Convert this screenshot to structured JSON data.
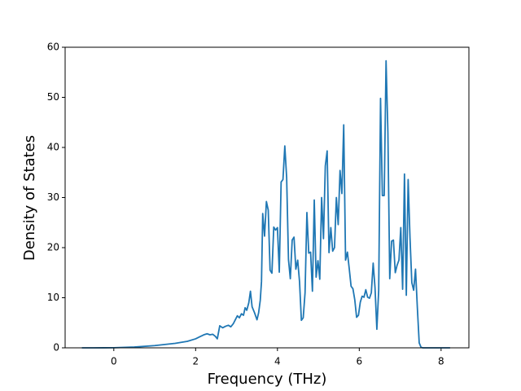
{
  "chart_data": {
    "type": "line",
    "xlabel": "Frequency (THz)",
    "ylabel": "Density of States",
    "xlim": [
      -1.19,
      8.68
    ],
    "ylim": [
      0,
      60
    ],
    "xticks": [
      0,
      2,
      4,
      6,
      8
    ],
    "yticks": [
      0,
      10,
      20,
      30,
      40,
      50,
      60
    ],
    "series": [
      {
        "color": "#1f77b4",
        "x": [
          -0.78,
          -0.5,
          0,
          0.5,
          1.0,
          1.5,
          1.8,
          2.0,
          2.1,
          2.2,
          2.28,
          2.35,
          2.42,
          2.48,
          2.53,
          2.59,
          2.66,
          2.73,
          2.8,
          2.86,
          2.92,
          2.97,
          3.02,
          3.07,
          3.12,
          3.17,
          3.21,
          3.25,
          3.3,
          3.34,
          3.38,
          3.44,
          3.5,
          3.54,
          3.58,
          3.61,
          3.64,
          3.685,
          3.73,
          3.775,
          3.82,
          3.865,
          3.91,
          3.955,
          4.0,
          4.045,
          4.09,
          4.135,
          4.18,
          4.225,
          4.27,
          4.315,
          4.36,
          4.405,
          4.45,
          4.495,
          4.54,
          4.585,
          4.63,
          4.675,
          4.72,
          4.765,
          4.81,
          4.855,
          4.9,
          4.945,
          4.99,
          5.035,
          5.08,
          5.125,
          5.17,
          5.215,
          5.26,
          5.305,
          5.35,
          5.395,
          5.44,
          5.485,
          5.53,
          5.575,
          5.62,
          5.665,
          5.71,
          5.755,
          5.8,
          5.845,
          5.89,
          5.935,
          5.98,
          6.025,
          6.07,
          6.115,
          6.16,
          6.205,
          6.25,
          6.295,
          6.34,
          6.385,
          6.43,
          6.475,
          6.52,
          6.565,
          6.61,
          6.655,
          6.7,
          6.745,
          6.79,
          6.835,
          6.88,
          6.925,
          6.97,
          7.015,
          7.06,
          7.105,
          7.15,
          7.195,
          7.24,
          7.285,
          7.33,
          7.375,
          7.42,
          7.465,
          7.51,
          7.555,
          8.22
        ],
        "values": [
          0,
          0,
          0.02,
          0.15,
          0.45,
          0.9,
          1.3,
          1.8,
          2.2,
          2.6,
          2.8,
          2.6,
          2.7,
          2.3,
          1.8,
          4.4,
          4.0,
          4.3,
          4.5,
          4.2,
          4.8,
          5.6,
          6.4,
          6.0,
          6.8,
          6.5,
          8.0,
          7.5,
          9.0,
          11.3,
          8.2,
          7.0,
          5.6,
          7.0,
          9.5,
          13.2,
          26.8,
          22.3,
          29.2,
          27.5,
          15.5,
          14.9,
          24.1,
          23.5,
          24.0,
          15.1,
          33.1,
          33.6,
          40.3,
          34.0,
          17.6,
          13.8,
          21.5,
          22.1,
          15.7,
          17.5,
          13.2,
          5.5,
          6.0,
          11.0,
          27.0,
          18.9,
          19.1,
          11.3,
          29.5,
          14.1,
          17.4,
          13.7,
          30.0,
          21.8,
          36.3,
          39.3,
          19.0,
          24.0,
          19.3,
          20.0,
          30.0,
          24.6,
          35.4,
          30.8,
          44.5,
          17.5,
          19.1,
          15.8,
          12.3,
          11.8,
          9.6,
          6.1,
          6.5,
          9.1,
          10.3,
          10.1,
          11.6,
          10.1,
          9.9,
          11.0,
          16.9,
          12.0,
          3.7,
          11.5,
          49.8,
          30.4,
          30.4,
          57.3,
          43,
          13.8,
          21.3,
          21.5,
          15.0,
          16.5,
          17.5,
          24.0,
          11.7,
          34.7,
          10.5,
          33.6,
          22.0,
          13.0,
          11.5,
          15.7,
          8.0,
          1.0,
          0.1,
          0,
          0
        ]
      }
    ]
  }
}
